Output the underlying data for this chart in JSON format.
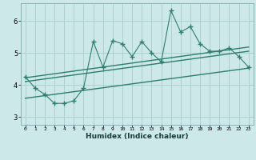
{
  "xlabel": "Humidex (Indice chaleur)",
  "bg_color": "#cce8e8",
  "grid_color": "#aacccc",
  "line_color": "#2e7d6e",
  "xlim": [
    -0.5,
    23.5
  ],
  "ylim": [
    2.75,
    6.55
  ],
  "xticks": [
    0,
    1,
    2,
    3,
    4,
    5,
    6,
    7,
    8,
    9,
    10,
    11,
    12,
    13,
    14,
    15,
    16,
    17,
    18,
    19,
    20,
    21,
    22,
    23
  ],
  "yticks": [
    3,
    4,
    5,
    6
  ],
  "data_x": [
    0,
    1,
    2,
    3,
    4,
    5,
    6,
    7,
    8,
    9,
    10,
    11,
    12,
    13,
    14,
    15,
    16,
    17,
    18,
    19,
    20,
    21,
    22,
    23
  ],
  "data_y": [
    4.25,
    3.9,
    3.7,
    3.42,
    3.42,
    3.5,
    3.9,
    5.35,
    4.55,
    5.38,
    5.28,
    4.88,
    5.35,
    5.0,
    4.72,
    6.32,
    5.65,
    5.82,
    5.28,
    5.05,
    5.05,
    5.15,
    4.88,
    4.55
  ],
  "trend1_x": [
    0,
    23
  ],
  "trend1_y": [
    4.1,
    5.05
  ],
  "trend2_x": [
    0,
    23
  ],
  "trend2_y": [
    3.58,
    4.52
  ],
  "trend3_x": [
    0,
    23
  ],
  "trend3_y": [
    4.22,
    5.18
  ]
}
